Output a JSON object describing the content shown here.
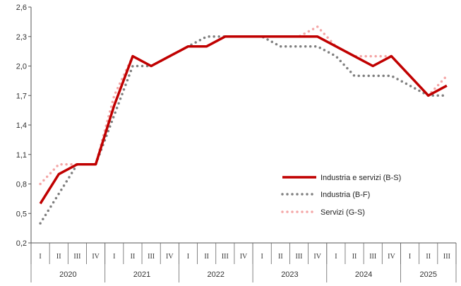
{
  "chart_data": {
    "type": "line",
    "ylim": [
      0.2,
      2.6
    ],
    "yticks": [
      "0,2",
      "0,5",
      "0,8",
      "1,1",
      "1,4",
      "1,7",
      "2,0",
      "2,3",
      "2,6"
    ],
    "ytick_values": [
      0.2,
      0.5,
      0.8,
      1.1,
      1.4,
      1.7,
      2.0,
      2.3,
      2.6
    ],
    "grid": false,
    "legend_position": "right-middle",
    "quarter_labels": [
      "I",
      "II",
      "III",
      "IV",
      "I",
      "II",
      "III",
      "IV",
      "I",
      "II",
      "III",
      "IV",
      "I",
      "II",
      "III",
      "IV",
      "I",
      "II",
      "III",
      "IV",
      "I",
      "II",
      "III"
    ],
    "years": [
      {
        "label": "2020",
        "quarters": 4
      },
      {
        "label": "2021",
        "quarters": 4
      },
      {
        "label": "2022",
        "quarters": 4
      },
      {
        "label": "2023",
        "quarters": 4
      },
      {
        "label": "2024",
        "quarters": 4
      },
      {
        "label": "2025",
        "quarters": 3
      }
    ],
    "series": [
      {
        "name": "Industria e servizi (B-S)",
        "color": "#c00000",
        "style": "solid",
        "values": [
          0.6,
          0.9,
          1.0,
          1.0,
          1.6,
          2.1,
          2.0,
          2.1,
          2.2,
          2.2,
          2.3,
          2.3,
          2.3,
          2.3,
          2.3,
          2.3,
          2.2,
          2.1,
          2.0,
          2.1,
          1.9,
          1.7,
          1.8
        ]
      },
      {
        "name": "Industria (B-F)",
        "color": "#7f7f7f",
        "style": "dotted",
        "values": [
          0.4,
          0.7,
          1.0,
          1.0,
          1.5,
          2.0,
          2.0,
          2.1,
          2.2,
          2.3,
          2.3,
          2.3,
          2.3,
          2.2,
          2.2,
          2.2,
          2.1,
          1.9,
          1.9,
          1.9,
          1.8,
          1.7,
          1.7
        ]
      },
      {
        "name": "Servizi (G-S)",
        "color": "#f4a6a6",
        "style": "dotted",
        "values": [
          0.8,
          1.0,
          1.0,
          1.0,
          1.7,
          2.1,
          2.0,
          2.1,
          2.2,
          2.2,
          2.3,
          2.3,
          2.3,
          2.3,
          2.3,
          2.4,
          2.2,
          2.1,
          2.1,
          2.1,
          1.9,
          1.7,
          1.9
        ]
      }
    ]
  }
}
